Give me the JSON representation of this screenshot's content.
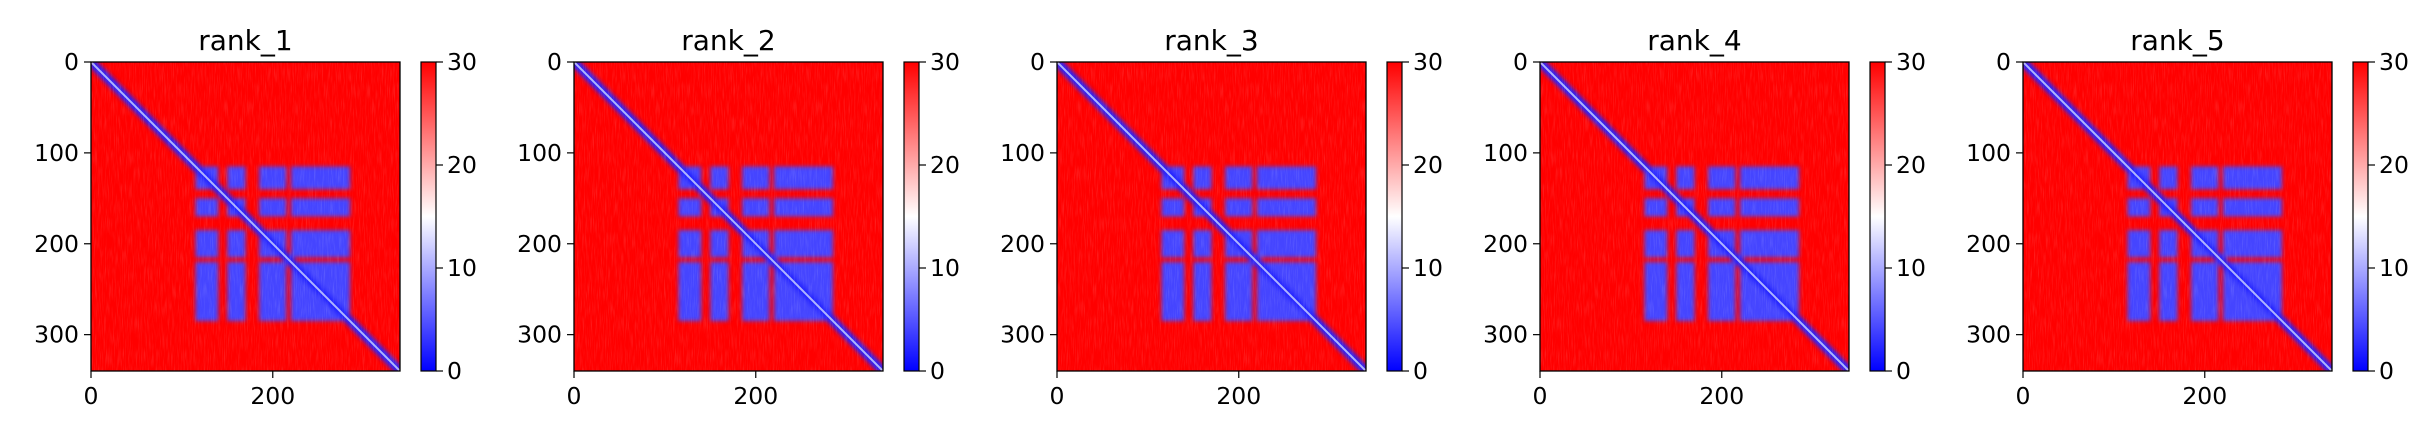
{
  "chart_data": {
    "type": "heatmap",
    "colormap": {
      "name": "bwr",
      "low_color": "#0000ff",
      "mid_color": "#ffffff",
      "high_color": "#ff0000",
      "vmin": 0,
      "vmax": 30
    },
    "colorbar_ticks": [
      0,
      10,
      20,
      30
    ],
    "x_ticks": [
      0,
      200
    ],
    "y_ticks": [
      0,
      100,
      200,
      300
    ],
    "xlim": [
      0,
      340
    ],
    "ylim": [
      340,
      0
    ],
    "grid": false,
    "panels": [
      {
        "title": "rank_1",
        "x_ticks": [
          0,
          200
        ],
        "y_ticks": [
          0,
          100,
          200,
          300
        ]
      },
      {
        "title": "rank_2",
        "x_ticks": [
          0,
          200
        ],
        "y_ticks": [
          0,
          100,
          200,
          300
        ]
      },
      {
        "title": "rank_3",
        "x_ticks": [
          0,
          200
        ],
        "y_ticks": [
          0,
          100,
          200,
          300
        ]
      },
      {
        "title": "rank_4",
        "x_ticks": [
          0,
          200
        ],
        "y_ticks": [
          0,
          100,
          200,
          300
        ]
      },
      {
        "title": "rank_5",
        "x_ticks": [
          0,
          200
        ],
        "y_ticks": [
          0,
          100,
          200,
          300
        ]
      }
    ],
    "structure": {
      "domain_blocks": [
        {
          "from": 115,
          "to": 140
        },
        {
          "from": 150,
          "to": 170
        },
        {
          "from": 185,
          "to": 215
        },
        {
          "from": 220,
          "to": 285
        }
      ],
      "domain_range": [
        115,
        285
      ],
      "block_value": 4,
      "background_value": 30,
      "diagonal_value": 2
    }
  }
}
